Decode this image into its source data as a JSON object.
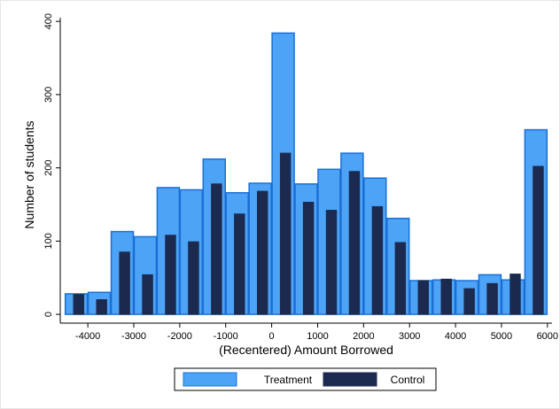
{
  "chart_data": {
    "type": "bar",
    "title": "",
    "xlabel": "(Recentered) Amount Borrowed",
    "ylabel": "Number of students",
    "xlim": [
      -4600,
      6100
    ],
    "ylim": [
      -12,
      405
    ],
    "x_ticks": [
      -4000,
      -3000,
      -2000,
      -1000,
      0,
      1000,
      2000,
      3000,
      4000,
      5000,
      6000
    ],
    "y_ticks": [
      0,
      100,
      200,
      300,
      400
    ],
    "x_tick_labels": [
      "-4000",
      "-3000",
      "-2000",
      "-1000",
      "0",
      "1000",
      "2000",
      "3000",
      "4000",
      "5000",
      "6000"
    ],
    "y_tick_labels": [
      "0",
      "100",
      "200",
      "300",
      "400"
    ],
    "grid": false,
    "legend_position": "bottom",
    "series": [
      {
        "name": "Treatment",
        "color": "#4da3f5",
        "edge_color": "#1a6fd6",
        "bins": [
          {
            "x0": -4500,
            "x1": -4000,
            "value": 28
          },
          {
            "x0": -4000,
            "x1": -3500,
            "value": 30
          },
          {
            "x0": -3500,
            "x1": -3000,
            "value": 113
          },
          {
            "x0": -3000,
            "x1": -2500,
            "value": 106
          },
          {
            "x0": -2500,
            "x1": -2000,
            "value": 173
          },
          {
            "x0": -2000,
            "x1": -1500,
            "value": 170
          },
          {
            "x0": -1500,
            "x1": -1000,
            "value": 212
          },
          {
            "x0": -1000,
            "x1": -500,
            "value": 166
          },
          {
            "x0": -500,
            "x1": 0,
            "value": 179
          },
          {
            "x0": 0,
            "x1": 500,
            "value": 384
          },
          {
            "x0": 500,
            "x1": 1000,
            "value": 178
          },
          {
            "x0": 1000,
            "x1": 1500,
            "value": 198
          },
          {
            "x0": 1500,
            "x1": 2000,
            "value": 220
          },
          {
            "x0": 2000,
            "x1": 2500,
            "value": 186
          },
          {
            "x0": 2500,
            "x1": 3000,
            "value": 131
          },
          {
            "x0": 3000,
            "x1": 3500,
            "value": 46
          },
          {
            "x0": 3500,
            "x1": 4000,
            "value": 47
          },
          {
            "x0": 4000,
            "x1": 4500,
            "value": 46
          },
          {
            "x0": 4500,
            "x1": 5000,
            "value": 54
          },
          {
            "x0": 5000,
            "x1": 5500,
            "value": 47
          },
          {
            "x0": 5500,
            "x1": 6000,
            "value": 252
          }
        ]
      },
      {
        "name": "Control",
        "color": "#1b2a4e",
        "edge_color": "#1b2a4e",
        "bins": [
          {
            "x0": -4320,
            "x1": -4080,
            "value": 27
          },
          {
            "x0": -3820,
            "x1": -3580,
            "value": 20
          },
          {
            "x0": -3320,
            "x1": -3080,
            "value": 85
          },
          {
            "x0": -2820,
            "x1": -2580,
            "value": 54
          },
          {
            "x0": -2320,
            "x1": -2080,
            "value": 108
          },
          {
            "x0": -1820,
            "x1": -1580,
            "value": 99
          },
          {
            "x0": -1320,
            "x1": -1080,
            "value": 178
          },
          {
            "x0": -820,
            "x1": -580,
            "value": 137
          },
          {
            "x0": -320,
            "x1": -80,
            "value": 168
          },
          {
            "x0": 180,
            "x1": 420,
            "value": 220
          },
          {
            "x0": 680,
            "x1": 920,
            "value": 153
          },
          {
            "x0": 1180,
            "x1": 1420,
            "value": 142
          },
          {
            "x0": 1680,
            "x1": 1920,
            "value": 195
          },
          {
            "x0": 2180,
            "x1": 2420,
            "value": 147
          },
          {
            "x0": 2680,
            "x1": 2920,
            "value": 98
          },
          {
            "x0": 3180,
            "x1": 3420,
            "value": 46
          },
          {
            "x0": 3680,
            "x1": 3920,
            "value": 48
          },
          {
            "x0": 4180,
            "x1": 4420,
            "value": 35
          },
          {
            "x0": 4680,
            "x1": 4920,
            "value": 42
          },
          {
            "x0": 5180,
            "x1": 5420,
            "value": 55
          },
          {
            "x0": 5680,
            "x1": 5920,
            "value": 202
          }
        ]
      }
    ]
  }
}
